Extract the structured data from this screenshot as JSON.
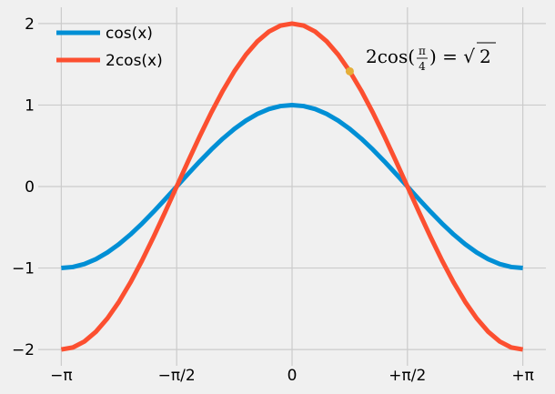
{
  "chart_data": {
    "type": "line",
    "title": "",
    "xlabel": "",
    "ylabel": "",
    "xlim": [
      -3.4558,
      3.4558
    ],
    "ylim": [
      -2.2,
      2.2
    ],
    "grid": true,
    "legend_position": "top-left",
    "xticks": [
      {
        "value": -3.14159,
        "label": "−π"
      },
      {
        "value": -1.5708,
        "label": "−π/2"
      },
      {
        "value": 0,
        "label": "0"
      },
      {
        "value": 1.5708,
        "label": "+π/2"
      },
      {
        "value": 3.14159,
        "label": "+π"
      }
    ],
    "yticks": [
      {
        "value": -2,
        "label": "−2"
      },
      {
        "value": -1,
        "label": "−1"
      },
      {
        "value": 0,
        "label": "0"
      },
      {
        "value": 1,
        "label": "1"
      },
      {
        "value": 2,
        "label": "2"
      }
    ],
    "series": [
      {
        "name": "cos(x)",
        "color": "#008fd5",
        "x": [
          -3.1416,
          -2.9845,
          -2.8274,
          -2.6704,
          -2.5133,
          -2.3562,
          -2.1991,
          -2.042,
          -1.885,
          -1.7279,
          -1.5708,
          -1.4137,
          -1.2566,
          -1.0996,
          -0.9425,
          -0.7854,
          -0.6283,
          -0.4712,
          -0.3142,
          -0.1571,
          0,
          0.1571,
          0.3142,
          0.4712,
          0.6283,
          0.7854,
          0.9425,
          1.0996,
          1.2566,
          1.4137,
          1.5708,
          1.7279,
          1.885,
          2.042,
          2.1991,
          2.3562,
          2.5133,
          2.6704,
          2.8274,
          2.9845,
          3.1416
        ],
        "y": [
          -1.0,
          -0.9877,
          -0.9511,
          -0.891,
          -0.809,
          -0.7071,
          -0.5878,
          -0.454,
          -0.309,
          -0.1564,
          0.0,
          0.1564,
          0.309,
          0.454,
          0.5878,
          0.7071,
          0.809,
          0.891,
          0.9511,
          0.9877,
          1.0,
          0.9877,
          0.9511,
          0.891,
          0.809,
          0.7071,
          0.5878,
          0.454,
          0.309,
          0.1564,
          0.0,
          -0.1564,
          -0.309,
          -0.454,
          -0.5878,
          -0.7071,
          -0.809,
          -0.891,
          -0.9511,
          -0.9877,
          -1.0
        ]
      },
      {
        "name": "2cos(x)",
        "color": "#fc4f30",
        "x": [
          -3.1416,
          -2.9845,
          -2.8274,
          -2.6704,
          -2.5133,
          -2.3562,
          -2.1991,
          -2.042,
          -1.885,
          -1.7279,
          -1.5708,
          -1.4137,
          -1.2566,
          -1.0996,
          -0.9425,
          -0.7854,
          -0.6283,
          -0.4712,
          -0.3142,
          -0.1571,
          0,
          0.1571,
          0.3142,
          0.4712,
          0.6283,
          0.7854,
          0.9425,
          1.0996,
          1.2566,
          1.4137,
          1.5708,
          1.7279,
          1.885,
          2.042,
          2.1991,
          2.3562,
          2.5133,
          2.6704,
          2.8274,
          2.9845,
          3.1416
        ],
        "y": [
          -2.0,
          -1.9754,
          -1.9021,
          -1.782,
          -1.618,
          -1.4142,
          -1.1756,
          -0.908,
          -0.618,
          -0.3128,
          0.0,
          0.3128,
          0.618,
          0.908,
          1.1756,
          1.4142,
          1.618,
          1.782,
          1.9021,
          1.9754,
          2.0,
          1.9754,
          1.9021,
          1.782,
          1.618,
          1.4142,
          1.1756,
          0.908,
          0.618,
          0.3128,
          0.0,
          -0.3128,
          -0.618,
          -0.908,
          -1.1756,
          -1.4142,
          -1.618,
          -1.782,
          -1.9021,
          -1.9754,
          -2.0
        ]
      }
    ],
    "marker": {
      "x": 0.7854,
      "y": 1.4142,
      "color": "#e5ae38"
    },
    "annotation": {
      "prefix": "2cos(",
      "frac_num": "π",
      "frac_den": "4",
      "suffix": ") = √",
      "radicand": "2"
    }
  },
  "colors": {
    "background": "#f0f0f0",
    "grid": "#cbcbcb"
  }
}
